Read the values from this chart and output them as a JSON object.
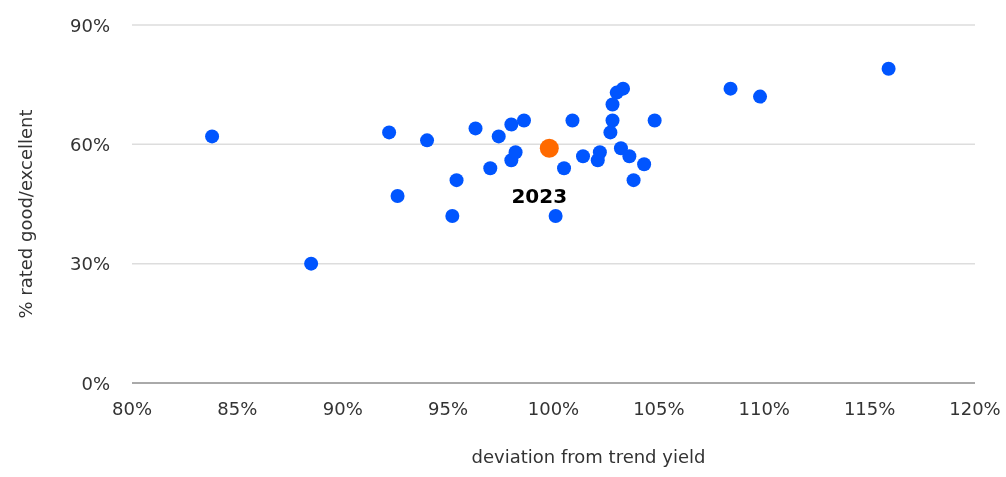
{
  "chart_data": {
    "type": "scatter",
    "xlabel": "deviation from trend yield",
    "ylabel": "% rated good/excellent",
    "xlim": [
      80,
      120
    ],
    "ylim": [
      0,
      90
    ],
    "xticks": [
      {
        "value": 80,
        "label": "80%"
      },
      {
        "value": 85,
        "label": "85%"
      },
      {
        "value": 90,
        "label": "90%"
      },
      {
        "value": 95,
        "label": "95%"
      },
      {
        "value": 100,
        "label": "100%"
      },
      {
        "value": 105,
        "label": "105%"
      },
      {
        "value": 110,
        "label": "110%"
      },
      {
        "value": 115,
        "label": "115%"
      },
      {
        "value": 120,
        "label": "120%"
      }
    ],
    "yticks": [
      {
        "value": 0,
        "label": "0%"
      },
      {
        "value": 30,
        "label": "30%"
      },
      {
        "value": 60,
        "label": "60%"
      },
      {
        "value": 90,
        "label": "90%"
      }
    ],
    "grid": "y",
    "marker": "circle",
    "series": [
      {
        "color": "#0055ff",
        "x": [
          83.8,
          88.5,
          92.2,
          92.6,
          94.0,
          95.2,
          95.4,
          96.3,
          97.0,
          97.4,
          98.0,
          98.0,
          98.2,
          98.6,
          100.1,
          100.5,
          100.9,
          101.4,
          102.1,
          102.2,
          102.7,
          102.8,
          102.8,
          103.0,
          103.3,
          103.2,
          103.6,
          103.8,
          104.3,
          104.8,
          108.4,
          109.8,
          115.9
        ],
        "values": [
          62,
          30,
          63,
          47,
          61,
          42,
          51,
          64,
          54,
          62,
          65,
          56,
          58,
          66,
          42,
          54,
          66,
          57,
          56,
          58,
          63,
          70,
          66,
          73,
          74,
          59,
          57,
          51,
          55,
          66,
          74,
          72,
          79
        ]
      },
      {
        "color": "#ff6a00",
        "x": [
          99.8
        ],
        "values": [
          59
        ]
      }
    ],
    "annotations": [
      {
        "text": "2023",
        "x": 99.8,
        "y": 59
      }
    ]
  }
}
